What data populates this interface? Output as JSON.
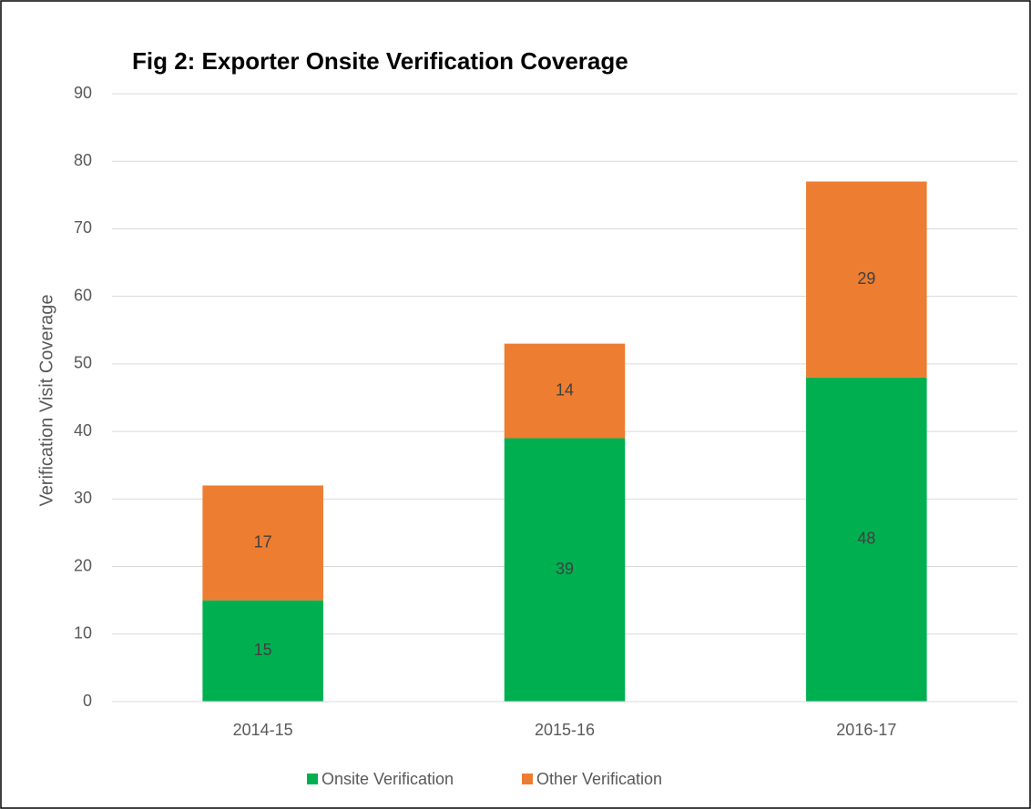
{
  "chart_data": {
    "type": "bar",
    "stacked": true,
    "title": "Fig 2: Exporter Onsite Verification Coverage",
    "y_label": "Verification Visit Coverage",
    "categories": [
      "2014-15",
      "2015-16",
      "2016-17"
    ],
    "series": [
      {
        "name": "Onsite Verification",
        "color": "#00b050",
        "values": [
          15,
          39,
          48
        ]
      },
      {
        "name": "Other Verification",
        "color": "#ed7d31",
        "values": [
          17,
          14,
          29
        ]
      }
    ],
    "ylim": [
      0,
      90
    ],
    "yticks": [
      0,
      10,
      20,
      30,
      40,
      50,
      60,
      70,
      80,
      90
    ],
    "grid": true,
    "legend": "bottom"
  }
}
